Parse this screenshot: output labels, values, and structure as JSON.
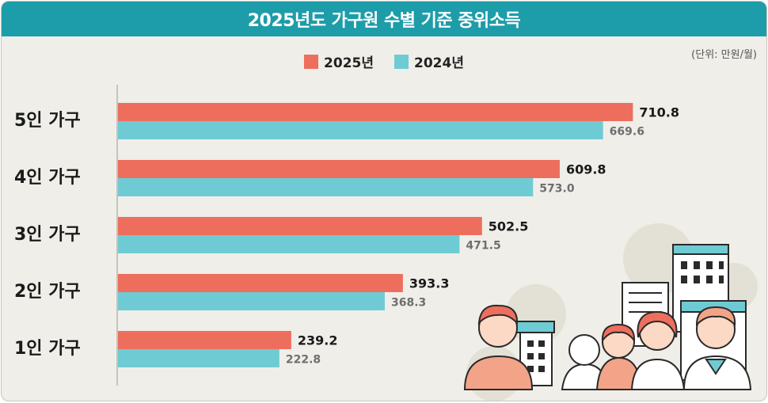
{
  "header": {
    "title": "2025년도 가구원 수별 기준 중위소득"
  },
  "unit": "(단위: 만원/월)",
  "colors": {
    "bar_2025": "#ee6e5e",
    "bar_2024": "#6fcbd3",
    "header_bg": "#1d9da9"
  },
  "chart_data": {
    "type": "bar",
    "orientation": "horizontal",
    "title": "2025년도 가구원 수별 기준 중위소득",
    "categories": [
      "5인 가구",
      "4인 가구",
      "3인 가구",
      "2인 가구",
      "1인 가구"
    ],
    "series": [
      {
        "name": "2025년",
        "values": [
          710.8,
          609.8,
          502.5,
          393.3,
          239.2
        ],
        "value_labels": [
          "710.8",
          "609.8",
          "502.5",
          "393.3",
          "239.2"
        ]
      },
      {
        "name": "2024년",
        "values": [
          669.6,
          573.0,
          471.5,
          368.3,
          222.8
        ],
        "value_labels": [
          "669.6",
          "573.0",
          "471.5",
          "368.3",
          "222.8"
        ]
      }
    ],
    "legend": "top-center",
    "grid": false
  }
}
